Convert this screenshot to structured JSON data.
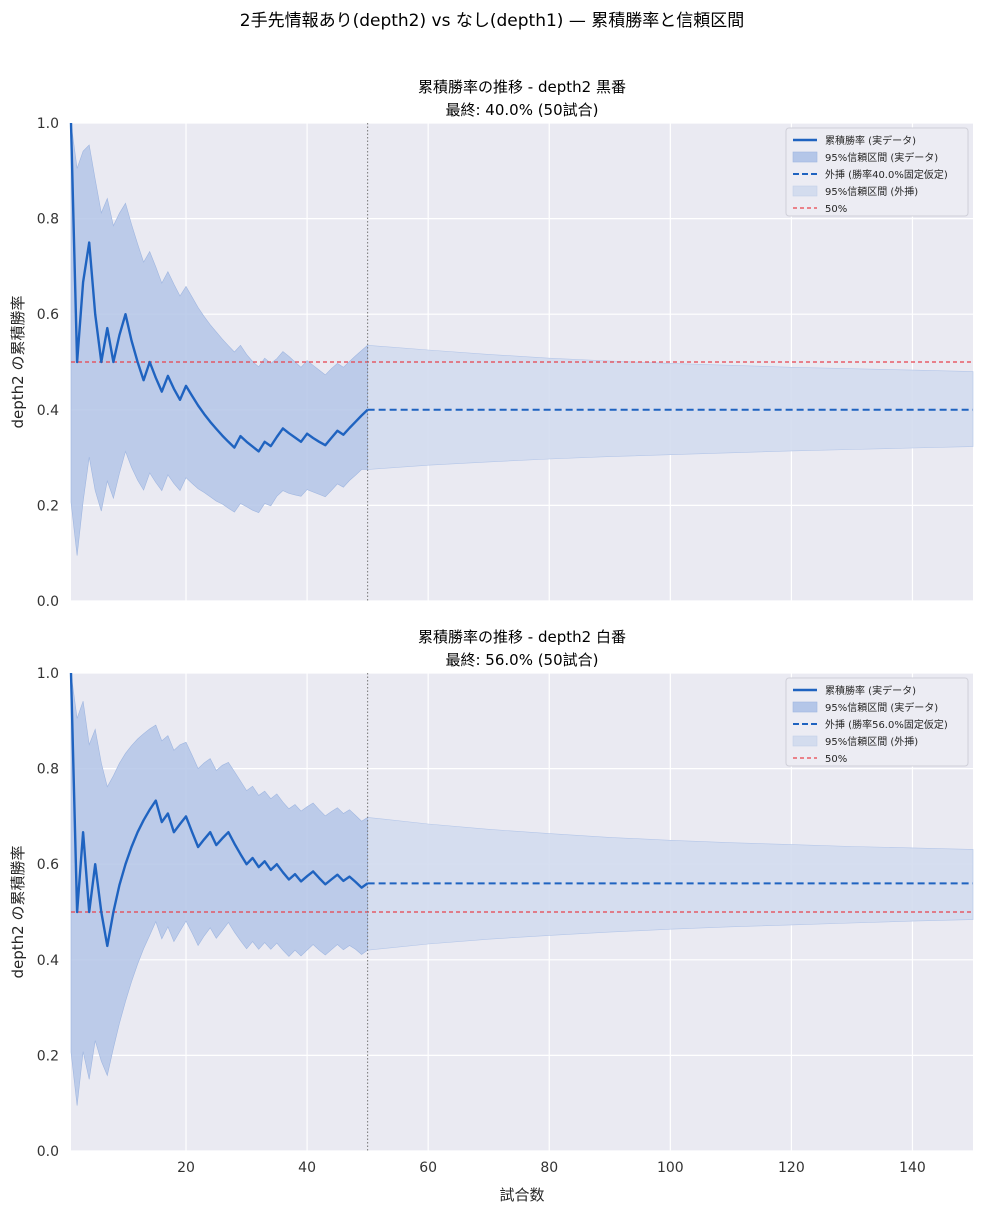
{
  "suptitle": "2手先情報あり(depth2) vs なし(depth1) — 累積勝率と信頼区間",
  "chart_data": [
    {
      "type": "line",
      "title": "累積勝率の推移 - depth2 黒番",
      "subtitle": "最終: 40.0% (50試合)",
      "xlabel": "",
      "ylabel": "depth2 の累積勝率",
      "xlim": [
        1,
        150
      ],
      "ylim": [
        0,
        1
      ],
      "xticks": [
        20,
        40,
        60,
        80,
        100,
        120,
        140
      ],
      "xtick_labels_visible": false,
      "yticks": [
        0.0,
        0.2,
        0.4,
        0.6,
        0.8,
        1.0
      ],
      "grid": true,
      "legend_position": "top-right",
      "actual_games": 50,
      "final_rate": 0.4,
      "legend": [
        "累積勝率 (実データ)",
        "95%信頼区間 (実データ)",
        "外挿 (勝率40.0%固定仮定)",
        "95%信頼区間 (外挿)",
        "50%"
      ],
      "reference_line": 0.5,
      "series": [
        {
          "name": "累積勝率 (実データ)",
          "x": [
            1,
            2,
            3,
            4,
            5,
            6,
            7,
            8,
            9,
            10,
            11,
            12,
            13,
            14,
            15,
            16,
            17,
            18,
            19,
            20,
            21,
            22,
            23,
            24,
            25,
            26,
            27,
            28,
            29,
            30,
            31,
            32,
            33,
            34,
            35,
            36,
            37,
            38,
            39,
            40,
            41,
            42,
            43,
            44,
            45,
            46,
            47,
            48,
            49,
            50
          ],
          "y": [
            1.0,
            0.5,
            0.667,
            0.75,
            0.6,
            0.5,
            0.571,
            0.5,
            0.556,
            0.6,
            0.545,
            0.5,
            0.462,
            0.5,
            0.467,
            0.438,
            0.471,
            0.444,
            0.421,
            0.45,
            0.429,
            0.409,
            0.391,
            0.375,
            0.36,
            0.346,
            0.333,
            0.321,
            0.345,
            0.333,
            0.323,
            0.313,
            0.333,
            0.324,
            0.343,
            0.361,
            0.351,
            0.342,
            0.333,
            0.35,
            0.341,
            0.333,
            0.326,
            0.341,
            0.356,
            0.348,
            0.362,
            0.375,
            0.388,
            0.4
          ]
        },
        {
          "name": "95%信頼区間 (実データ)",
          "x": [
            1,
            2,
            3,
            4,
            5,
            6,
            7,
            8,
            9,
            10,
            11,
            12,
            13,
            14,
            15,
            16,
            17,
            18,
            19,
            20,
            21,
            22,
            23,
            24,
            25,
            26,
            27,
            28,
            29,
            30,
            31,
            32,
            33,
            34,
            35,
            36,
            37,
            38,
            39,
            40,
            41,
            42,
            43,
            44,
            45,
            46,
            47,
            48,
            49,
            50
          ],
          "upper": [
            1.0,
            0.905,
            0.941,
            0.954,
            0.882,
            0.812,
            0.842,
            0.785,
            0.811,
            0.832,
            0.788,
            0.747,
            0.709,
            0.731,
            0.699,
            0.665,
            0.689,
            0.663,
            0.638,
            0.658,
            0.636,
            0.614,
            0.595,
            0.578,
            0.563,
            0.548,
            0.534,
            0.521,
            0.535,
            0.516,
            0.501,
            0.49,
            0.508,
            0.497,
            0.507,
            0.522,
            0.512,
            0.5,
            0.489,
            0.503,
            0.493,
            0.483,
            0.473,
            0.486,
            0.497,
            0.489,
            0.501,
            0.513,
            0.524,
            0.535
          ],
          "lower": [
            0.207,
            0.095,
            0.208,
            0.301,
            0.231,
            0.188,
            0.251,
            0.215,
            0.267,
            0.313,
            0.28,
            0.253,
            0.232,
            0.268,
            0.248,
            0.231,
            0.264,
            0.246,
            0.231,
            0.258,
            0.246,
            0.235,
            0.227,
            0.218,
            0.209,
            0.203,
            0.194,
            0.186,
            0.204,
            0.197,
            0.19,
            0.185,
            0.204,
            0.199,
            0.219,
            0.231,
            0.225,
            0.222,
            0.219,
            0.233,
            0.228,
            0.223,
            0.218,
            0.231,
            0.245,
            0.238,
            0.252,
            0.263,
            0.275,
            0.275
          ]
        },
        {
          "name": "外挿 (勝率40.0%固定仮定)",
          "x_range": [
            50,
            150
          ],
          "value": 0.4
        },
        {
          "name": "95%信頼区間 (外挿)",
          "x": [
            50,
            60,
            70,
            80,
            90,
            100,
            110,
            120,
            130,
            140,
            150
          ],
          "upper": [
            0.535,
            0.525,
            0.516,
            0.508,
            0.502,
            0.497,
            0.493,
            0.489,
            0.486,
            0.483,
            0.48
          ],
          "lower": [
            0.275,
            0.284,
            0.291,
            0.297,
            0.302,
            0.306,
            0.31,
            0.314,
            0.317,
            0.32,
            0.323
          ]
        }
      ]
    },
    {
      "type": "line",
      "title": "累積勝率の推移 - depth2 白番",
      "subtitle": "最終: 56.0% (50試合)",
      "xlabel": "試合数",
      "ylabel": "depth2 の累積勝率",
      "xlim": [
        1,
        150
      ],
      "ylim": [
        0,
        1
      ],
      "xticks": [
        20,
        40,
        60,
        80,
        100,
        120,
        140
      ],
      "xtick_labels": [
        "20",
        "40",
        "60",
        "80",
        "100",
        "120",
        "140"
      ],
      "yticks": [
        0.0,
        0.2,
        0.4,
        0.6,
        0.8,
        1.0
      ],
      "grid": true,
      "legend_position": "top-right",
      "actual_games": 50,
      "final_rate": 0.56,
      "legend": [
        "累積勝率 (実データ)",
        "95%信頼区間 (実データ)",
        "外挿 (勝率56.0%固定仮定)",
        "95%信頼区間 (外挿)",
        "50%"
      ],
      "reference_line": 0.5,
      "series": [
        {
          "name": "累積勝率 (実データ)",
          "x": [
            1,
            2,
            3,
            4,
            5,
            6,
            7,
            8,
            9,
            10,
            11,
            12,
            13,
            14,
            15,
            16,
            17,
            18,
            19,
            20,
            21,
            22,
            23,
            24,
            25,
            26,
            27,
            28,
            29,
            30,
            31,
            32,
            33,
            34,
            35,
            36,
            37,
            38,
            39,
            40,
            41,
            42,
            43,
            44,
            45,
            46,
            47,
            48,
            49,
            50
          ],
          "y": [
            1.0,
            0.5,
            0.667,
            0.5,
            0.6,
            0.5,
            0.429,
            0.5,
            0.556,
            0.6,
            0.636,
            0.667,
            0.692,
            0.714,
            0.733,
            0.688,
            0.706,
            0.667,
            0.684,
            0.7,
            0.667,
            0.636,
            0.652,
            0.667,
            0.64,
            0.654,
            0.667,
            0.643,
            0.621,
            0.6,
            0.613,
            0.594,
            0.606,
            0.588,
            0.6,
            0.583,
            0.568,
            0.579,
            0.564,
            0.575,
            0.585,
            0.571,
            0.558,
            0.568,
            0.578,
            0.565,
            0.574,
            0.563,
            0.551,
            0.56
          ]
        },
        {
          "name": "95%信頼区間 (実データ)",
          "x": [
            1,
            2,
            3,
            4,
            5,
            6,
            7,
            8,
            9,
            10,
            11,
            12,
            13,
            14,
            15,
            16,
            17,
            18,
            19,
            20,
            21,
            22,
            23,
            24,
            25,
            26,
            27,
            28,
            29,
            30,
            31,
            32,
            33,
            34,
            35,
            36,
            37,
            38,
            39,
            40,
            41,
            42,
            43,
            44,
            45,
            46,
            47,
            48,
            49,
            50
          ],
          "upper": [
            1.0,
            0.905,
            0.941,
            0.85,
            0.882,
            0.812,
            0.762,
            0.785,
            0.811,
            0.832,
            0.848,
            0.862,
            0.873,
            0.883,
            0.891,
            0.858,
            0.869,
            0.838,
            0.85,
            0.855,
            0.828,
            0.8,
            0.812,
            0.821,
            0.796,
            0.807,
            0.813,
            0.794,
            0.774,
            0.754,
            0.763,
            0.744,
            0.753,
            0.737,
            0.747,
            0.73,
            0.716,
            0.725,
            0.711,
            0.72,
            0.728,
            0.714,
            0.701,
            0.71,
            0.718,
            0.706,
            0.714,
            0.702,
            0.69,
            0.698
          ],
          "lower": [
            0.207,
            0.095,
            0.208,
            0.15,
            0.231,
            0.188,
            0.158,
            0.215,
            0.267,
            0.313,
            0.354,
            0.391,
            0.423,
            0.451,
            0.48,
            0.444,
            0.469,
            0.438,
            0.46,
            0.481,
            0.456,
            0.43,
            0.45,
            0.467,
            0.445,
            0.461,
            0.478,
            0.458,
            0.44,
            0.423,
            0.438,
            0.422,
            0.436,
            0.422,
            0.435,
            0.42,
            0.407,
            0.42,
            0.408,
            0.42,
            0.432,
            0.42,
            0.41,
            0.421,
            0.432,
            0.421,
            0.43,
            0.422,
            0.411,
            0.42
          ]
        },
        {
          "name": "外挿 (勝率56.0%固定仮定)",
          "x_range": [
            50,
            150
          ],
          "value": 0.56
        },
        {
          "name": "95%信頼区間 (外挿)",
          "x": [
            50,
            60,
            70,
            80,
            90,
            100,
            110,
            120,
            130,
            140,
            150
          ],
          "upper": [
            0.698,
            0.684,
            0.673,
            0.664,
            0.656,
            0.65,
            0.645,
            0.641,
            0.637,
            0.634,
            0.631
          ],
          "lower": [
            0.42,
            0.433,
            0.443,
            0.451,
            0.458,
            0.464,
            0.469,
            0.473,
            0.477,
            0.481,
            0.484
          ]
        }
      ]
    }
  ],
  "colors": {
    "line": "#1f63c0",
    "band_actual": "#b4c6e8",
    "band_extrap": "#d3dcee",
    "ref_line": "#e8424c",
    "vline": "#777777",
    "axes_bg": "#eaeaf2",
    "grid": "#ffffff"
  }
}
